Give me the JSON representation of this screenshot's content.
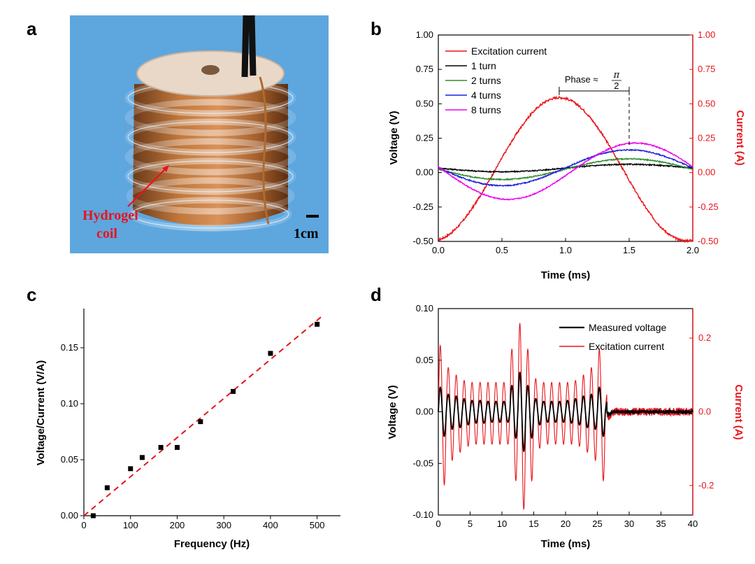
{
  "panels": {
    "a": "a",
    "b": "b",
    "c": "c",
    "d": "d"
  },
  "photo": {
    "label_line1": "Hydrogel",
    "label_line2": "coil",
    "scale_bar": "1cm"
  },
  "colors": {
    "red": "#e8141b",
    "black": "#000000",
    "green": "#2e8b2e",
    "blue": "#1f1fe0",
    "magenta": "#ee00ee",
    "photo_bg": "#5ea6de"
  },
  "chart_data": [
    {
      "id": "b",
      "type": "line",
      "xlabel": "Time (ms)",
      "ylabel": "Voltage (V)",
      "ylabel_right": "Current (A)",
      "xlim": [
        0,
        2.0
      ],
      "ylim": [
        -0.5,
        1.0
      ],
      "ylim_right": [
        -0.5,
        1.0
      ],
      "xticks": [
        "0.0",
        "0.5",
        "1.0",
        "1.5",
        "2.0"
      ],
      "yticks": [
        "-0.50",
        "-0.25",
        "0.00",
        "0.25",
        "0.50",
        "0.75",
        "1.00"
      ],
      "yticks_right": [
        "-0.50",
        "-0.25",
        "0.00",
        "0.25",
        "0.50",
        "0.75",
        "1.00"
      ],
      "annotation": {
        "text": "Phase ≈",
        "numerator": "π",
        "denominator": "2",
        "x_start": 0.95,
        "x_end": 1.5
      },
      "legend_position": "top-left",
      "series": [
        {
          "name": "Excitation current",
          "color": "#e8141b",
          "axis": "right",
          "model": "cos",
          "offset": 0.025,
          "amplitude": 0.52,
          "period": 2.0,
          "peak_t": 0.95
        },
        {
          "name": "1 turn",
          "color": "#000000",
          "axis": "left",
          "model": "cos",
          "offset": 0.033,
          "amplitude": 0.027,
          "period": 2.0,
          "peak_t": 1.5
        },
        {
          "name": "2 turns",
          "color": "#2e8b2e",
          "axis": "left",
          "model": "cos",
          "offset": 0.025,
          "amplitude": 0.075,
          "period": 2.0,
          "peak_t": 1.5
        },
        {
          "name": "4 turns",
          "color": "#1f1fe0",
          "axis": "left",
          "model": "cos",
          "offset": 0.035,
          "amplitude": 0.13,
          "period": 2.0,
          "peak_t": 1.5
        },
        {
          "name": "8 turns",
          "color": "#ee00ee",
          "axis": "left",
          "model": "cos",
          "offset": 0.01,
          "amplitude": 0.205,
          "period": 2.0,
          "peak_t": 1.55
        }
      ]
    },
    {
      "id": "c",
      "type": "scatter",
      "xlabel": "Frequency (Hz)",
      "ylabel": "Voltage/Current (V/A)",
      "xlim": [
        0,
        550
      ],
      "ylim": [
        0,
        0.185
      ],
      "xticks": [
        "0",
        "100",
        "200",
        "300",
        "400",
        "500"
      ],
      "yticks": [
        "0.00",
        "0.05",
        "0.10",
        "0.15"
      ],
      "x": [
        20,
        50,
        100,
        125,
        165,
        200,
        250,
        320,
        400,
        500
      ],
      "y": [
        0.0,
        0.025,
        0.042,
        0.052,
        0.061,
        0.061,
        0.084,
        0.111,
        0.145,
        0.171
      ],
      "fit": {
        "x": [
          0,
          510
        ],
        "y": [
          0.0,
          0.178
        ],
        "style": "dashed",
        "color": "#e8141b"
      }
    },
    {
      "id": "d",
      "type": "line",
      "xlabel": "Time (ms)",
      "ylabel": "Voltage (V)",
      "ylabel_right": "Current (A)",
      "xlim": [
        0,
        40
      ],
      "ylim": [
        -0.1,
        0.1
      ],
      "ylim_right": [
        -0.28,
        0.28
      ],
      "xticks": [
        "0",
        "5",
        "10",
        "15",
        "20",
        "25",
        "30",
        "35",
        "40"
      ],
      "yticks": [
        "-0.10",
        "-0.05",
        "0.00",
        "0.05",
        "0.10"
      ],
      "yticks_right": [
        "-0.2",
        "0.0",
        "0.2"
      ],
      "legend_position": "top-right",
      "series": [
        {
          "name": "Measured voltage",
          "color": "#000000",
          "axis": "left",
          "peaks": [
            0.028,
            0.02,
            0.018,
            0.015,
            0.013,
            0.013,
            0.012,
            0.012,
            0.012,
            0.03,
            0.045,
            0.03,
            0.015,
            0.012,
            0.012,
            0.012,
            0.013,
            0.015,
            0.018,
            0.02,
            0.028,
            0.012
          ],
          "period_ms": 1.25,
          "end_ms": 26.5
        },
        {
          "name": "Excitation current",
          "color": "#e8141b",
          "axis": "right",
          "peaks": [
            0.18,
            0.12,
            0.1,
            0.085,
            0.08,
            0.08,
            0.08,
            0.08,
            0.08,
            0.17,
            0.24,
            0.17,
            0.09,
            0.08,
            0.08,
            0.08,
            0.08,
            0.085,
            0.1,
            0.12,
            0.17,
            0.05
          ],
          "period_ms": 1.25,
          "end_ms": 26.5
        }
      ]
    }
  ]
}
